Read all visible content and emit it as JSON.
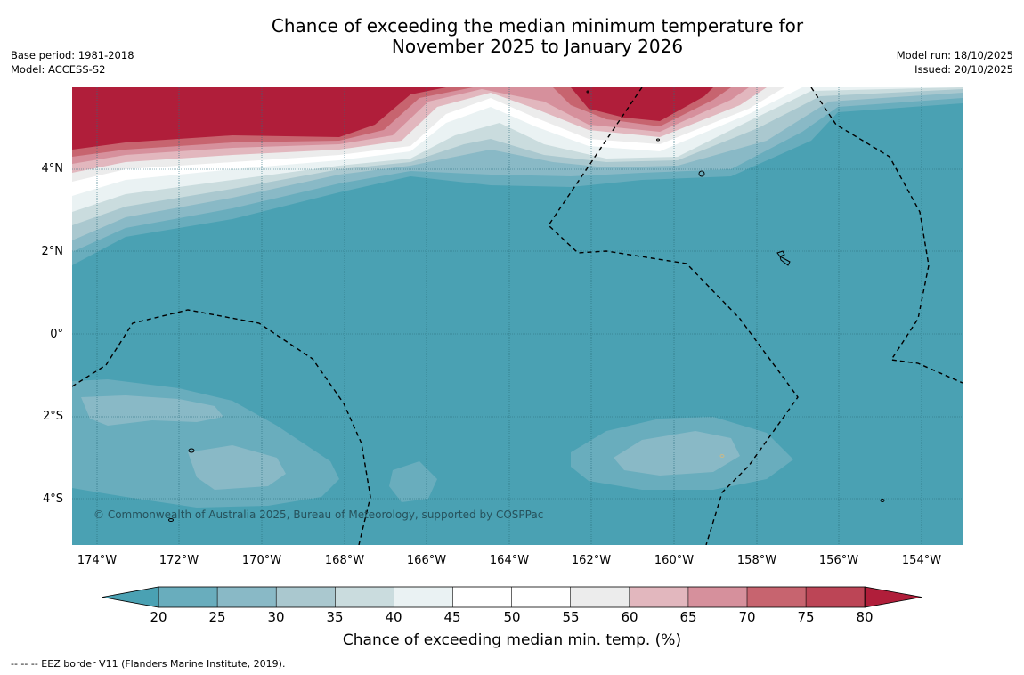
{
  "title": {
    "line1": "Chance of exceeding the median minimum temperature for",
    "line2": "November 2025 to January 2026"
  },
  "meta_left": {
    "base_period": "Base period: 1981-2018",
    "model": "Model: ACCESS-S2"
  },
  "meta_right": {
    "model_run": "Model run: 18/10/2025",
    "issued": "Issued: 20/10/2025"
  },
  "map": {
    "lat_labels": [
      "4°N",
      "2°N",
      "0°",
      "2°S",
      "4°S"
    ],
    "lon_labels": [
      "174°W",
      "172°W",
      "170°W",
      "168°W",
      "166°W",
      "164°W",
      "162°W",
      "160°W",
      "158°W",
      "156°W",
      "154°W"
    ],
    "copyright": "© Commonwealth of Australia 2025, Bureau of Meteorology, supported by COSPPac"
  },
  "colorbar": {
    "ticks": [
      "20",
      "25",
      "30",
      "35",
      "40",
      "45",
      "50",
      "55",
      "60",
      "65",
      "70",
      "75",
      "80"
    ],
    "colors": [
      "#4aa1b3",
      "#69adbd",
      "#89b9c6",
      "#aac8cf",
      "#cadcde",
      "#eaf2f3",
      "#ffffff",
      "#ffffff",
      "#ececec",
      "#e2b7be",
      "#d6909c",
      "#c7646f",
      "#bc4556",
      "#b01e3a"
    ],
    "title": "Chance of exceeding median min. temp. (%)"
  },
  "footer": "--  --  -- EEZ border V11 (Flanders Marine Institute, 2019)."
}
